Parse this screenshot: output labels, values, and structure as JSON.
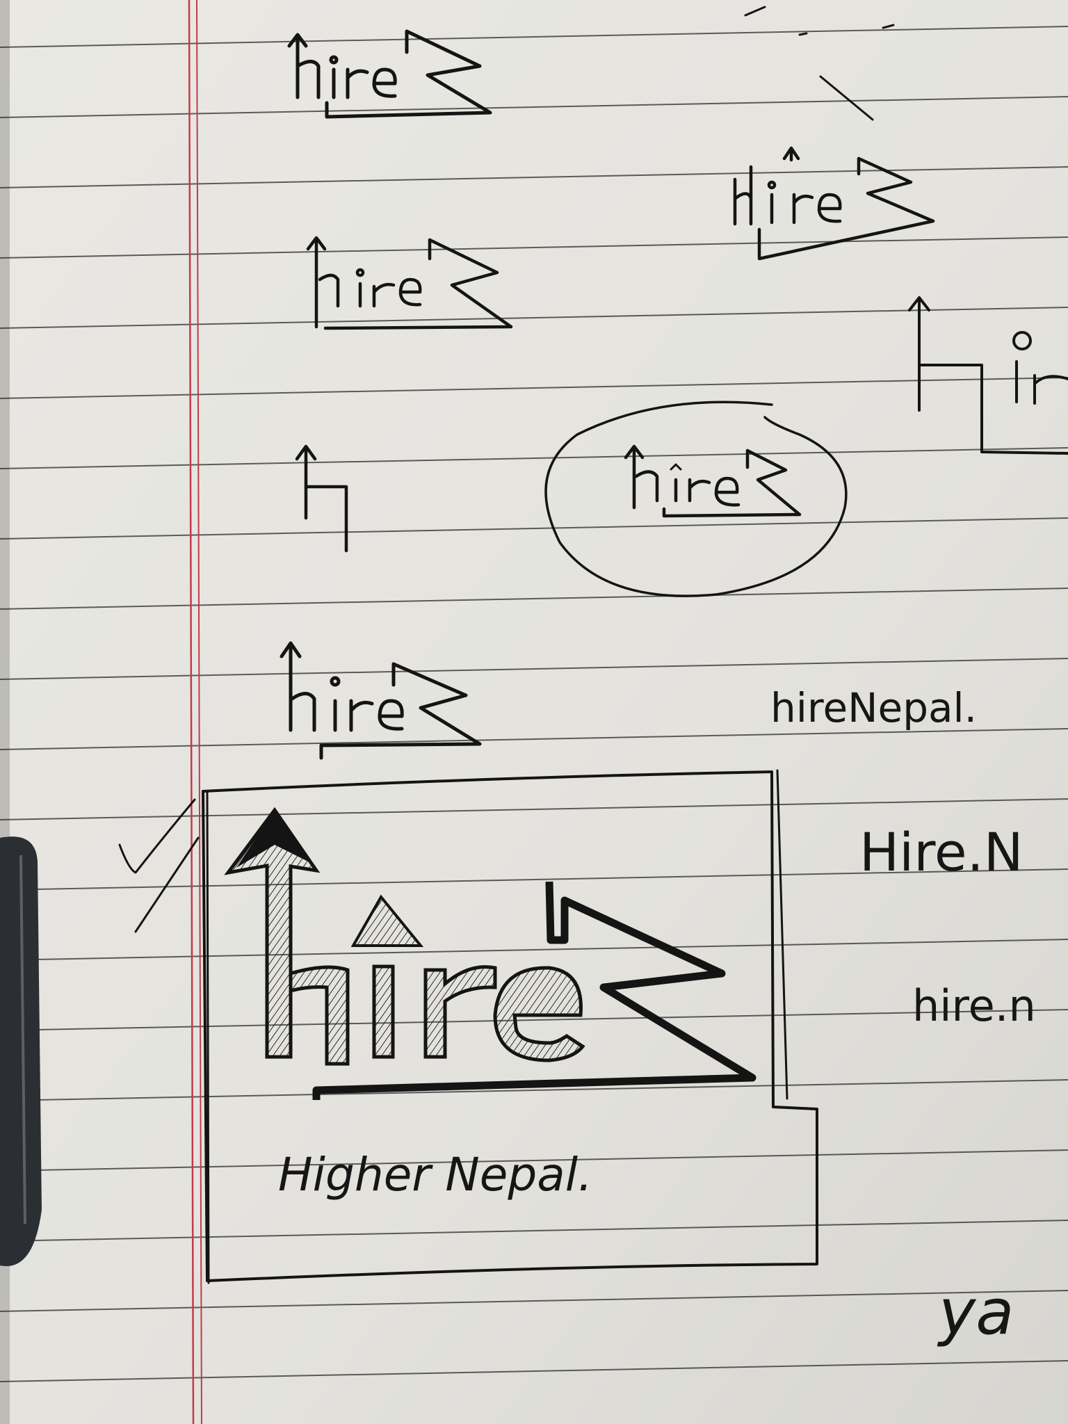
{
  "scene": {
    "description_free": true,
    "paper_color": "#e6e5e0",
    "rule_color": "#2b2b2b",
    "margin_color": "#c23b4a",
    "ink_color": "#141414"
  },
  "sketches": [
    {
      "id": "logo-1",
      "word": "hire"
    },
    {
      "id": "logo-2",
      "word": "hire"
    },
    {
      "id": "logo-3",
      "word": "hire"
    },
    {
      "id": "logo-5-circled",
      "word": "hire"
    },
    {
      "id": "logo-6",
      "word": "hire"
    },
    {
      "id": "logo-final",
      "word": "hire"
    }
  ],
  "handwriting": {
    "tagline": "Higher  Nepal.",
    "name_variant_1": "hireNepal.",
    "name_variant_2": "Hire.N",
    "name_variant_3": "hire.n",
    "corner_text": "ya"
  }
}
